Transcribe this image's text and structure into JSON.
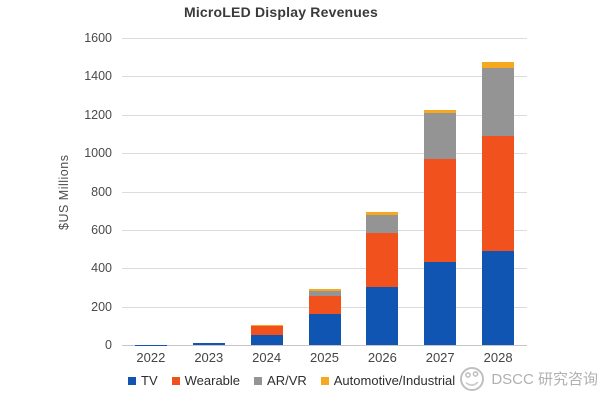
{
  "title": "MicroLED Display Revenues",
  "watermark": {
    "brand": "DSCC 研究咨询",
    "logo_icon": "dscc-swirl-circle-logo"
  },
  "colors": {
    "tv_blue": "#1155b2",
    "wearable_orange": "#f0511d",
    "arvr_gray": "#949494",
    "automotive_yellow": "#f6a81f",
    "gridline": "#dcdcdc",
    "axis_text": "#4a4a4a",
    "title_text": "#3a3a3a",
    "watermark_gray": "#a3a3a3"
  },
  "chart_data": {
    "type": "bar",
    "stacked": true,
    "title": "MicroLED Display Revenues",
    "xlabel": "",
    "ylabel": "$US Millions",
    "categories": [
      "2022",
      "2023",
      "2024",
      "2025",
      "2026",
      "2027",
      "2028"
    ],
    "series": [
      {
        "name": "TV",
        "color": "#1155b2",
        "values": [
          1,
          10,
          52,
          160,
          302,
          434,
          490
        ]
      },
      {
        "name": "Wearable",
        "color": "#f0511d",
        "values": [
          0,
          2,
          46,
          95,
          284,
          538,
          600
        ]
      },
      {
        "name": "AR/VR",
        "color": "#949494",
        "values": [
          0,
          0,
          3,
          25,
          94,
          239,
          355
        ]
      },
      {
        "name": "Automotive/Industrial",
        "color": "#f6a81f",
        "values": [
          0,
          0,
          2,
          10,
          15,
          16,
          28
        ]
      }
    ],
    "totals": [
      1,
      12,
      103,
      290,
      695,
      1227,
      1473
    ],
    "ylim": [
      0,
      1600
    ],
    "yticks": [
      0,
      200,
      400,
      600,
      800,
      1000,
      1200,
      1400,
      1600
    ],
    "grid": true,
    "legend_position": "bottom"
  }
}
